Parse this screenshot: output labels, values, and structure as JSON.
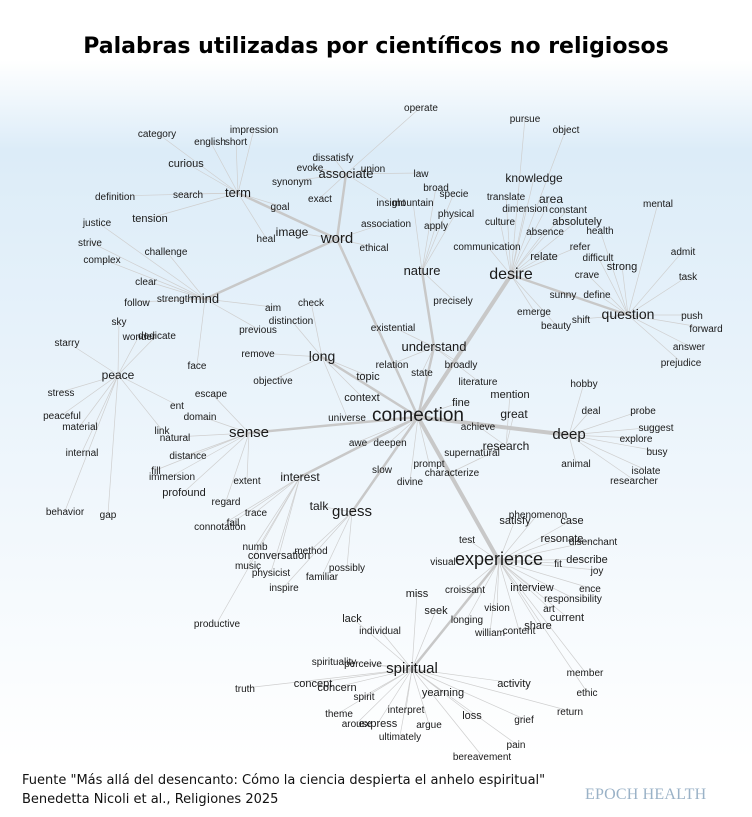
{
  "title": "Palabras utilizadas por científicos no religiosos",
  "footer": {
    "source_line1": "Fuente \"Más allá del desencanto: Cómo la ciencia despierta el anhelo espiritual\"",
    "source_line2": "Benedetta Nicoli et al., Religiones 2025"
  },
  "brand": "EPOCH HEALTH",
  "colors": {
    "edge": "#cfcfcf",
    "hub_edge": "#c8c8c8",
    "text": "#1a1a1a",
    "brand": "#9ab2c7"
  },
  "network": {
    "hubs": [
      "connection",
      "experience",
      "desire",
      "word",
      "sense",
      "spiritual",
      "guess",
      "understand",
      "nature",
      "long",
      "deep",
      "question",
      "mind",
      "term",
      "associate",
      "interest",
      "peace",
      "research"
    ],
    "hub_edges": [
      [
        "connection",
        "experience"
      ],
      [
        "connection",
        "desire"
      ],
      [
        "connection",
        "word"
      ],
      [
        "connection",
        "sense"
      ],
      [
        "connection",
        "deep"
      ],
      [
        "connection",
        "understand"
      ],
      [
        "connection",
        "long"
      ],
      [
        "connection",
        "guess"
      ],
      [
        "connection",
        "interest"
      ],
      [
        "understand",
        "nature"
      ],
      [
        "experience",
        "spiritual"
      ],
      [
        "word",
        "term"
      ],
      [
        "word",
        "mind"
      ],
      [
        "desire",
        "question"
      ],
      [
        "word",
        "associate"
      ]
    ],
    "words": [
      {
        "w": "operate"
      },
      {
        "w": "pursue"
      },
      {
        "w": "object"
      },
      {
        "w": "category"
      },
      {
        "w": "impression"
      },
      {
        "w": "english"
      },
      {
        "w": "short"
      },
      {
        "w": "dissatisfy"
      },
      {
        "w": "evoke"
      },
      {
        "w": "union"
      },
      {
        "w": "curious"
      },
      {
        "w": "associate"
      },
      {
        "w": "law"
      },
      {
        "w": "knowledge"
      },
      {
        "w": "synonym"
      },
      {
        "w": "broad"
      },
      {
        "w": "specie"
      },
      {
        "w": "translate"
      },
      {
        "w": "area"
      },
      {
        "w": "definition"
      },
      {
        "w": "search"
      },
      {
        "w": "term"
      },
      {
        "w": "exact"
      },
      {
        "w": "insight"
      },
      {
        "w": "mountain"
      },
      {
        "w": "dimension"
      },
      {
        "w": "constant"
      },
      {
        "w": "mental"
      },
      {
        "w": "goal"
      },
      {
        "w": "physical"
      },
      {
        "w": "culture"
      },
      {
        "w": "absolutely"
      },
      {
        "w": "justice"
      },
      {
        "w": "tension"
      },
      {
        "w": "association"
      },
      {
        "w": "apply"
      },
      {
        "w": "absence"
      },
      {
        "w": "health"
      },
      {
        "w": "strive"
      },
      {
        "w": "image"
      },
      {
        "w": "heal"
      },
      {
        "w": "word"
      },
      {
        "w": "ethical"
      },
      {
        "w": "communication"
      },
      {
        "w": "refer"
      },
      {
        "w": "admit"
      },
      {
        "w": "complex"
      },
      {
        "w": "challenge"
      },
      {
        "w": "relate"
      },
      {
        "w": "difficult"
      },
      {
        "w": "strong"
      },
      {
        "w": "crave"
      },
      {
        "w": "nature"
      },
      {
        "w": "desire"
      },
      {
        "w": "task"
      },
      {
        "w": "clear"
      },
      {
        "w": "sunny"
      },
      {
        "w": "define"
      },
      {
        "w": "follow"
      },
      {
        "w": "strength"
      },
      {
        "w": "mind"
      },
      {
        "w": "check"
      },
      {
        "w": "precisely"
      },
      {
        "w": "aim"
      },
      {
        "w": "emerge"
      },
      {
        "w": "push"
      },
      {
        "w": "sky"
      },
      {
        "w": "shift"
      },
      {
        "w": "question"
      },
      {
        "w": "distinction"
      },
      {
        "w": "beauty"
      },
      {
        "w": "forward"
      },
      {
        "w": "starry"
      },
      {
        "w": "wonder"
      },
      {
        "w": "dedicate"
      },
      {
        "w": "previous"
      },
      {
        "w": "existential"
      },
      {
        "w": "answer"
      },
      {
        "w": "understand"
      },
      {
        "w": "remove"
      },
      {
        "w": "long"
      },
      {
        "w": "face"
      },
      {
        "w": "relation"
      },
      {
        "w": "broadly"
      },
      {
        "w": "prejudice"
      },
      {
        "w": "peace"
      },
      {
        "w": "objective"
      },
      {
        "w": "topic"
      },
      {
        "w": "state"
      },
      {
        "w": "literature"
      },
      {
        "w": "hobby"
      },
      {
        "w": "stress"
      },
      {
        "w": "escape"
      },
      {
        "w": "context"
      },
      {
        "w": "mention"
      },
      {
        "w": "ent"
      },
      {
        "w": "fine"
      },
      {
        "w": "deal"
      },
      {
        "w": "probe"
      },
      {
        "w": "peaceful"
      },
      {
        "w": "domain"
      },
      {
        "w": "universe"
      },
      {
        "w": "connection"
      },
      {
        "w": "great"
      },
      {
        "w": "material"
      },
      {
        "w": "achieve"
      },
      {
        "w": "suggest"
      },
      {
        "w": "link"
      },
      {
        "w": "natural"
      },
      {
        "w": "sense"
      },
      {
        "w": "awe"
      },
      {
        "w": "deepen"
      },
      {
        "w": "deep"
      },
      {
        "w": "explore"
      },
      {
        "w": "research"
      },
      {
        "w": "internal"
      },
      {
        "w": "distance"
      },
      {
        "w": "busy"
      },
      {
        "w": "supernatural"
      },
      {
        "w": "fill"
      },
      {
        "w": "immersion"
      },
      {
        "w": "gap"
      },
      {
        "w": "slow"
      },
      {
        "w": "prompt"
      },
      {
        "w": "characterize"
      },
      {
        "w": "animal"
      },
      {
        "w": "isolate"
      },
      {
        "w": "interest"
      },
      {
        "w": "extent"
      },
      {
        "w": "divine"
      },
      {
        "w": "researcher"
      },
      {
        "w": "profound"
      },
      {
        "w": "regard"
      },
      {
        "w": "behavior"
      },
      {
        "w": "talk"
      },
      {
        "w": "guess"
      },
      {
        "w": "trace"
      },
      {
        "w": "phenomenon"
      },
      {
        "w": "satisfy"
      },
      {
        "w": "case"
      },
      {
        "w": "connotation"
      },
      {
        "w": "fail"
      },
      {
        "w": "test"
      },
      {
        "w": "resonate"
      },
      {
        "w": "disenchant"
      },
      {
        "w": "numb"
      },
      {
        "w": "conversation"
      },
      {
        "w": "method"
      },
      {
        "w": "visual"
      },
      {
        "w": "experience"
      },
      {
        "w": "fit"
      },
      {
        "w": "describe"
      },
      {
        "w": "music"
      },
      {
        "w": "physicist"
      },
      {
        "w": "familiar"
      },
      {
        "w": "possibly"
      },
      {
        "w": "joy"
      },
      {
        "w": "inspire"
      },
      {
        "w": "croissant"
      },
      {
        "w": "interview"
      },
      {
        "w": "ence"
      },
      {
        "w": "miss"
      },
      {
        "w": "responsibility"
      },
      {
        "w": "art"
      },
      {
        "w": "seek"
      },
      {
        "w": "vision"
      },
      {
        "w": "current"
      },
      {
        "w": "productive"
      },
      {
        "w": "lack"
      },
      {
        "w": "longing"
      },
      {
        "w": "share"
      },
      {
        "w": "individual"
      },
      {
        "w": "william"
      },
      {
        "w": "content"
      },
      {
        "w": "spirituality"
      },
      {
        "w": "perceive"
      },
      {
        "w": "member"
      },
      {
        "w": "spiritual"
      },
      {
        "w": "activity"
      },
      {
        "w": "truth"
      },
      {
        "w": "concept"
      },
      {
        "w": "concern"
      },
      {
        "w": "ethic"
      },
      {
        "w": "spirit"
      },
      {
        "w": "yearning"
      },
      {
        "w": "interpret"
      },
      {
        "w": "return"
      },
      {
        "w": "theme"
      },
      {
        "w": "loss"
      },
      {
        "w": "grief"
      },
      {
        "w": "arouse"
      },
      {
        "w": "express"
      },
      {
        "w": "argue"
      },
      {
        "w": "ultimately"
      },
      {
        "w": "pain"
      },
      {
        "w": "bereavement"
      }
    ]
  }
}
